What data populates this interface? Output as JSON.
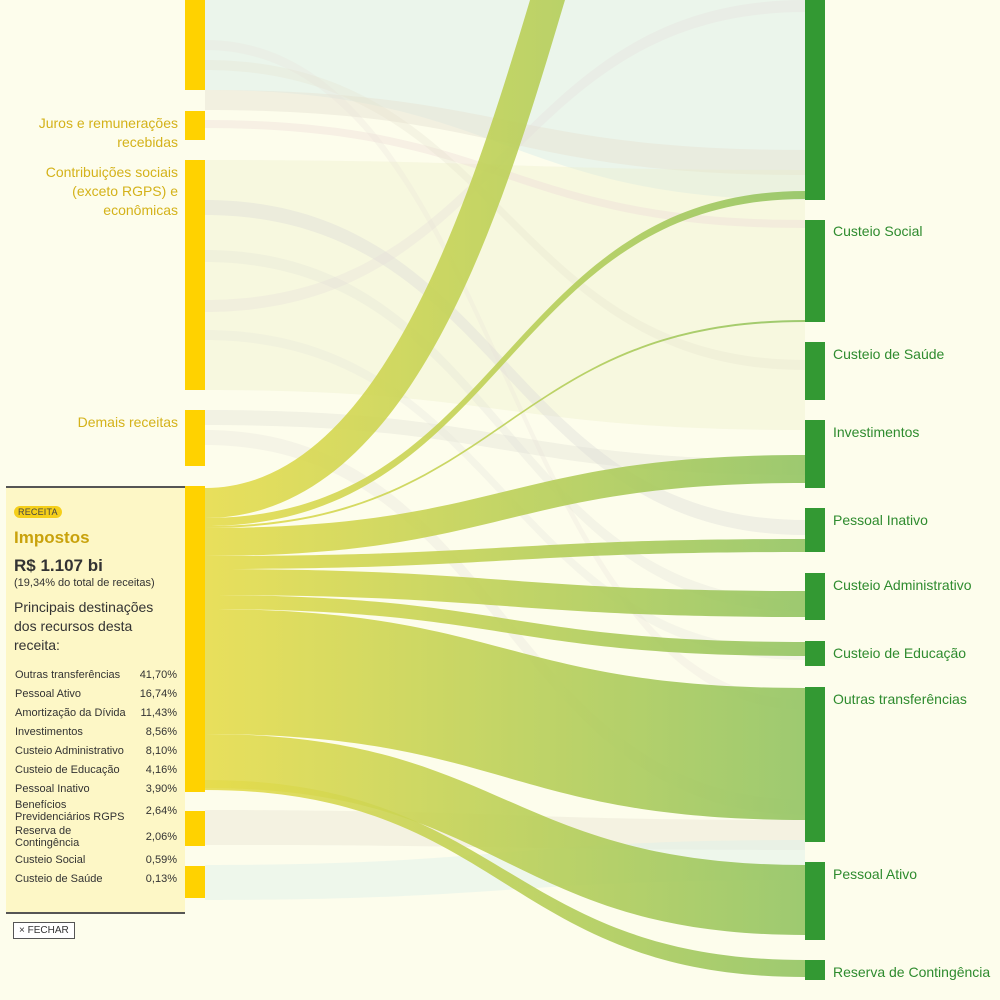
{
  "sources": [
    {
      "name": "Juros e remunerações recebidas",
      "lines": [
        "Juros e remunerações",
        "recebidas"
      ]
    },
    {
      "name": "Contribuições sociais (exceto RGPS) e econômicas",
      "lines": [
        "Contribuições sociais",
        "(exceto RGPS) e",
        "econômicas"
      ]
    },
    {
      "name": "Demais receitas",
      "lines": [
        "Demais receitas"
      ]
    }
  ],
  "destinations": [
    "Custeio Social",
    "Custeio de Saúde",
    "Investimentos",
    "Pessoal Inativo",
    "Custeio Administrativo",
    "Custeio de Educação",
    "Outras transferências",
    "Pessoal Ativo",
    "Reserva de Contingência"
  ],
  "panel": {
    "badge": "RECEITA",
    "title": "Impostos",
    "amount": "R$ 1.107 bi",
    "share": "(19,34% do total de receitas)",
    "heading": "Principais destinações dos recursos desta receita:",
    "rows": [
      {
        "label": "Outras transferências",
        "value": "41,70%"
      },
      {
        "label": "Pessoal Ativo",
        "value": "16,74%"
      },
      {
        "label": "Amortização da Dívida",
        "value": "11,43%"
      },
      {
        "label": "Investimentos",
        "value": "8,56%"
      },
      {
        "label": "Custeio Administrativo",
        "value": "8,10%"
      },
      {
        "label": "Custeio de Educação",
        "value": "4,16%"
      },
      {
        "label": "Pessoal Inativo",
        "value": "3,90%"
      },
      {
        "label": "Benefícios Previdenciários RGPS",
        "value": "2,64%"
      },
      {
        "label": "Reserva de Contingência",
        "value": "2,06%"
      },
      {
        "label": "Custeio Social",
        "value": "0,59%"
      },
      {
        "label": "Custeio de Saúde",
        "value": "0,13%"
      }
    ],
    "close": "× FECHAR"
  },
  "colors": {
    "source_node": "#ffd200",
    "destination_node": "#339933",
    "source_label": "#d4b21a",
    "destination_label": "#2e8b2e",
    "highlight_flow_start": "#e6dc4c",
    "highlight_flow_end": "#93c463"
  }
}
